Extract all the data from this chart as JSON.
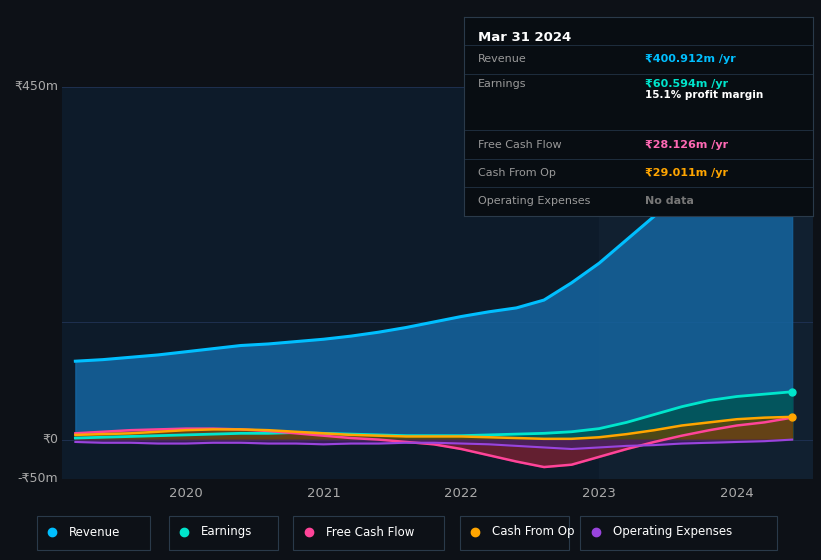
{
  "bg_color": "#0d1117",
  "chart_bg": "#0d1b2a",
  "shaded_bg": "#112030",
  "title_box_bg": "#080d12",
  "title_box": {
    "date": "Mar 31 2024",
    "rows": [
      {
        "label": "Revenue",
        "value": "₹400.912m /yr",
        "value_color": "#00bfff",
        "sub": null
      },
      {
        "label": "Earnings",
        "value": "₹60.594m /yr",
        "value_color": "#00e5cc",
        "sub": "15.1% profit margin"
      },
      {
        "label": "Free Cash Flow",
        "value": "₹28.126m /yr",
        "value_color": "#ff69b4",
        "sub": null
      },
      {
        "label": "Cash From Op",
        "value": "₹29.011m /yr",
        "value_color": "#ffa500",
        "sub": null
      },
      {
        "label": "Operating Expenses",
        "value": "No data",
        "value_color": "#777777",
        "sub": null
      }
    ]
  },
  "x_min": 2019.1,
  "x_max": 2024.55,
  "y_min": -50,
  "y_max": 450,
  "shaded_x_start": 2023.0,
  "xticks": [
    2020,
    2021,
    2022,
    2023,
    2024
  ],
  "legend": [
    {
      "label": "Revenue",
      "color": "#00bfff"
    },
    {
      "label": "Earnings",
      "color": "#00e5cc"
    },
    {
      "label": "Free Cash Flow",
      "color": "#ff4499"
    },
    {
      "label": "Cash From Op",
      "color": "#ffa500"
    },
    {
      "label": "Operating Expenses",
      "color": "#9944dd"
    }
  ],
  "series": {
    "x": [
      2019.2,
      2019.4,
      2019.6,
      2019.8,
      2020.0,
      2020.2,
      2020.4,
      2020.6,
      2020.8,
      2021.0,
      2021.2,
      2021.4,
      2021.6,
      2021.8,
      2022.0,
      2022.2,
      2022.4,
      2022.6,
      2022.8,
      2023.0,
      2023.2,
      2023.4,
      2023.6,
      2023.8,
      2024.0,
      2024.2,
      2024.4
    ],
    "revenue": [
      100,
      102,
      105,
      108,
      112,
      116,
      120,
      122,
      125,
      128,
      132,
      137,
      143,
      150,
      157,
      163,
      168,
      178,
      200,
      225,
      255,
      285,
      315,
      345,
      370,
      390,
      401
    ],
    "earnings": [
      2,
      3,
      4,
      5,
      6,
      7,
      8,
      8,
      9,
      8,
      7,
      6,
      5,
      5,
      5,
      6,
      7,
      8,
      10,
      14,
      22,
      32,
      42,
      50,
      55,
      58,
      61
    ],
    "free_cf": [
      8,
      10,
      12,
      13,
      14,
      14,
      13,
      11,
      8,
      5,
      2,
      0,
      -3,
      -6,
      -12,
      -20,
      -28,
      -35,
      -32,
      -22,
      -12,
      -3,
      5,
      12,
      18,
      22,
      28
    ],
    "cash_op": [
      6,
      7,
      8,
      10,
      12,
      13,
      13,
      12,
      10,
      8,
      6,
      5,
      4,
      4,
      4,
      3,
      2,
      1,
      1,
      3,
      7,
      12,
      18,
      22,
      26,
      28,
      29
    ],
    "op_exp": [
      -3,
      -4,
      -4,
      -5,
      -5,
      -4,
      -4,
      -5,
      -5,
      -6,
      -5,
      -5,
      -4,
      -4,
      -5,
      -6,
      -8,
      -10,
      -12,
      -10,
      -8,
      -7,
      -5,
      -4,
      -3,
      -2,
      0
    ]
  }
}
